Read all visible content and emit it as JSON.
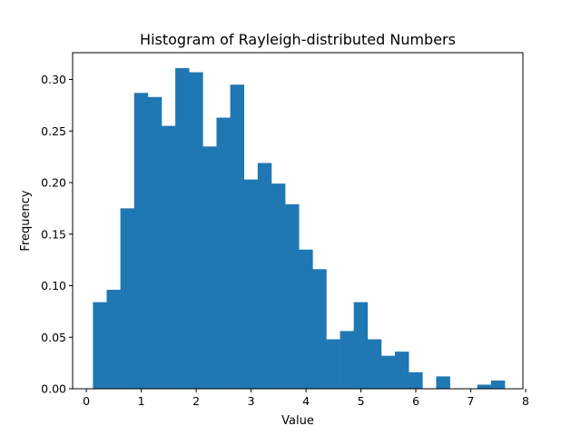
{
  "chart_data": {
    "type": "bar",
    "title": "Histogram of Rayleigh-distributed Numbers",
    "xlabel": "Value",
    "ylabel": "Frequency",
    "xlim": [
      -0.25,
      7.95
    ],
    "ylim": [
      0,
      0.326
    ],
    "xticks": [
      0,
      1,
      2,
      3,
      4,
      5,
      6,
      7,
      8
    ],
    "yticks": [
      0.0,
      0.05,
      0.1,
      0.15,
      0.2,
      0.25,
      0.3
    ],
    "ytick_labels": [
      "0.00",
      "0.05",
      "0.10",
      "0.15",
      "0.20",
      "0.25",
      "0.30"
    ],
    "grid": false,
    "bar_color": "#1f77b4",
    "bin_edges": [
      0.12,
      0.37,
      0.62,
      0.87,
      1.12,
      1.37,
      1.62,
      1.87,
      2.12,
      2.37,
      2.62,
      2.87,
      3.12,
      3.37,
      3.62,
      3.87,
      4.12,
      4.37,
      4.62,
      4.87,
      5.12,
      5.37,
      5.62,
      5.87,
      6.12,
      6.37,
      6.62,
      6.87,
      7.12,
      7.37,
      7.62
    ],
    "values": [
      0.084,
      0.096,
      0.175,
      0.287,
      0.283,
      0.255,
      0.311,
      0.307,
      0.235,
      0.263,
      0.295,
      0.203,
      0.219,
      0.199,
      0.179,
      0.135,
      0.116,
      0.048,
      0.056,
      0.084,
      0.048,
      0.032,
      0.036,
      0.016,
      0.0,
      0.012,
      0.0,
      0.0,
      0.004,
      0.008
    ]
  }
}
